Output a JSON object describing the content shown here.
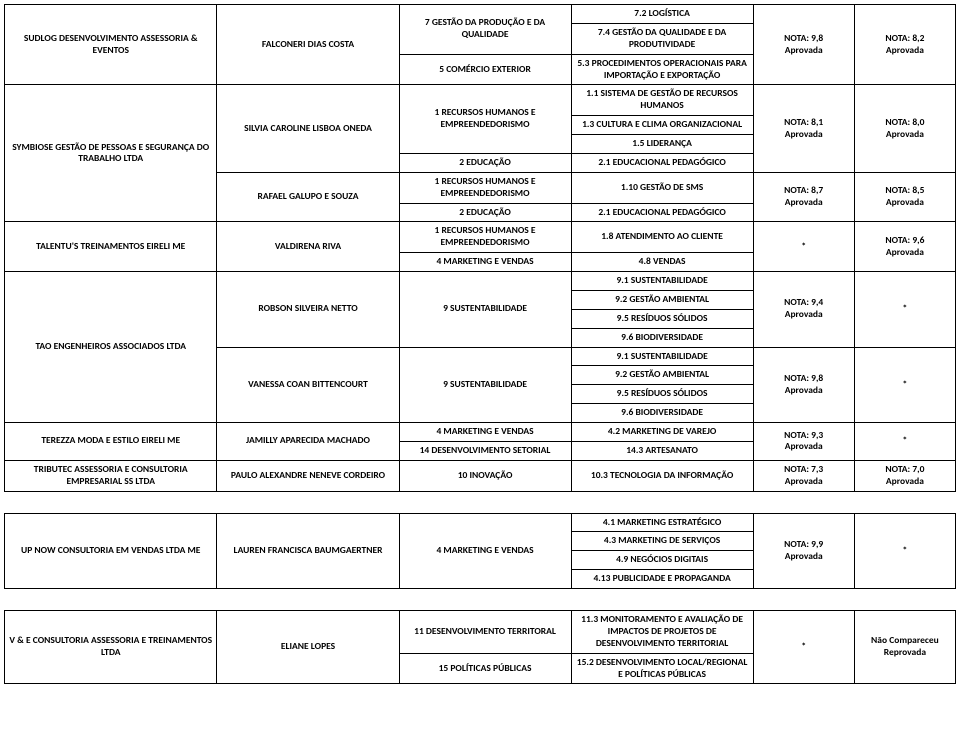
{
  "rows": [
    {
      "company": "SUDLOG DESENVOLVIMENTO ASSESSORIA & EVENTOS",
      "person": "FALCONERI DIAS COSTA",
      "areas": [
        {
          "label": "7 GESTÃO DA PRODUÇÃO E DA QUALIDADE",
          "subs": [
            "7.2 LOGÍSTICA",
            "7.4 GESTÃO DA QUALIDADE E DA PRODUTIVIDADE"
          ]
        },
        {
          "label": "5 COMÉRCIO EXTERIOR",
          "subs": [
            "5.3 PROCEDIMENTOS OPERACIONAIS PARA IMPORTAÇÃO E EXPORTAÇÃO"
          ]
        }
      ],
      "grade1": "NOTA: 9,8\nAprovada",
      "grade2": "NOTA: 8,2\nAprovada"
    },
    {
      "company": "SYMBIOSE GESTÃO DE PESSOAS E SEGURANÇA DO TRABALHO LTDA",
      "blocks": [
        {
          "person": "SILVIA CAROLINE LISBOA ONEDA",
          "areas": [
            {
              "label": "1 RECURSOS HUMANOS E EMPREENDEDORISMO",
              "subs": [
                "1.1 SISTEMA DE GESTÃO DE RECURSOS HUMANOS",
                "1.3 CULTURA E CLIMA ORGANIZACIONAL",
                "1.5 LIDERANÇA"
              ]
            },
            {
              "label": "2 EDUCAÇÃO",
              "subs": [
                "2.1 EDUCACIONAL PEDAGÓGICO"
              ]
            }
          ],
          "grade1": "NOTA: 8,1\nAprovada",
          "grade2": "NOTA: 8,0\nAprovada"
        },
        {
          "person": "RAFAEL GALUPO E SOUZA",
          "areas": [
            {
              "label": "1 RECURSOS HUMANOS E EMPREENDEDORISMO",
              "subs": [
                "1.10 GESTÃO DE SMS"
              ]
            },
            {
              "label": "2 EDUCAÇÃO",
              "subs": [
                "2.1 EDUCACIONAL PEDAGÓGICO"
              ]
            }
          ],
          "grade1": "NOTA: 8,7\nAprovada",
          "grade2": "NOTA: 8,5\nAprovada"
        }
      ]
    },
    {
      "company": "TALENTU'S TREINAMENTOS EIRELI ME",
      "person": "VALDIRENA RIVA",
      "areas": [
        {
          "label": "1 RECURSOS HUMANOS E EMPREENDEDORISMO",
          "subs": [
            "1.8 ATENDIMENTO AO CLIENTE"
          ]
        },
        {
          "label": "4 MARKETING E VENDAS",
          "subs": [
            "4.8 VENDAS"
          ]
        }
      ],
      "grade1": "*",
      "grade2": "NOTA: 9,6\nAprovada"
    },
    {
      "company": "TAO ENGENHEIROS ASSOCIADOS LTDA",
      "blocks": [
        {
          "person": "ROBSON SILVEIRA NETTO",
          "areas": [
            {
              "label": "9 SUSTENTABILIDADE",
              "subs": [
                "9.1 SUSTENTABILIDADE",
                "9.2 GESTÃO AMBIENTAL",
                "9.5 RESÍDUOS SÓLIDOS",
                "9.6 BIODIVERSIDADE"
              ]
            }
          ],
          "grade1": "NOTA: 9,4\nAprovada",
          "grade2": "*"
        },
        {
          "person": "VANESSA COAN BITTENCOURT",
          "areas": [
            {
              "label": "9 SUSTENTABILIDADE",
              "subs": [
                "9.1 SUSTENTABILIDADE",
                "9.2 GESTÃO AMBIENTAL",
                "9.5 RESÍDUOS SÓLIDOS",
                "9.6 BIODIVERSIDADE"
              ]
            }
          ],
          "grade1": "NOTA: 9,8\nAprovada",
          "grade2": "*"
        }
      ]
    },
    {
      "company": "TEREZZA MODA E ESTILO EIRELI ME",
      "person": "JAMILLY APARECIDA MACHADO",
      "areas": [
        {
          "label": "4 MARKETING E VENDAS",
          "subs": [
            "4.2 MARKETING DE VAREJO"
          ]
        },
        {
          "label": "14 DESENVOLVIMENTO SETORIAL",
          "subs": [
            "14.3 ARTESANATO"
          ]
        }
      ],
      "grade1": "NOTA: 9,3\nAprovada",
      "grade2": "*"
    },
    {
      "company": "TRIBUTEC ASSESSORIA E CONSULTORIA EMPRESARIAL SS LTDA",
      "person": "PAULO ALEXANDRE NENEVE CORDEIRO",
      "areas": [
        {
          "label": "10 INOVAÇÃO",
          "subs": [
            "10.3 TECNOLOGIA DA INFORMAÇÃO"
          ]
        }
      ],
      "grade1": "NOTA: 7,3\nAprovada",
      "grade2": "NOTA: 7,0\nAprovada"
    },
    {
      "company": "UP NOW CONSULTORIA EM VENDAS LTDA ME",
      "person": "LAUREN FRANCISCA BAUMGAERTNER",
      "areas": [
        {
          "label": "4 MARKETING E VENDAS",
          "subs": [
            "4.1 MARKETING ESTRATÉGICO",
            "4.3 MARKETING DE SERVIÇOS",
            "4.9 NEGÓCIOS DIGITAIS",
            "4.13 PUBLICIDADE E PROPAGANDA"
          ]
        }
      ],
      "grade1": "NOTA: 9,9\nAprovada",
      "grade2": "*"
    },
    {
      "company": "V & E CONSULTORIA ASSESSORIA E TREINAMENTOS LTDA",
      "person": "ELIANE LOPES",
      "areas": [
        {
          "label": "11 DESENVOLVIMENTO TERRITORAL",
          "subs": [
            "11.3 MONITORAMENTO E AVALIAÇÃO DE IMPACTOS DE PROJETOS DE DESENVOLVIMENTO TERRITORIAL"
          ]
        },
        {
          "label": "15 POLÍTICAS PÚBLICAS",
          "subs": [
            "15.2 DESENVOLVIMENTO LOCAL/REGIONAL E POLÍTICAS PÚBLICAS"
          ]
        }
      ],
      "grade1": "*",
      "grade2": "Não Compareceu\nReprovada"
    }
  ]
}
